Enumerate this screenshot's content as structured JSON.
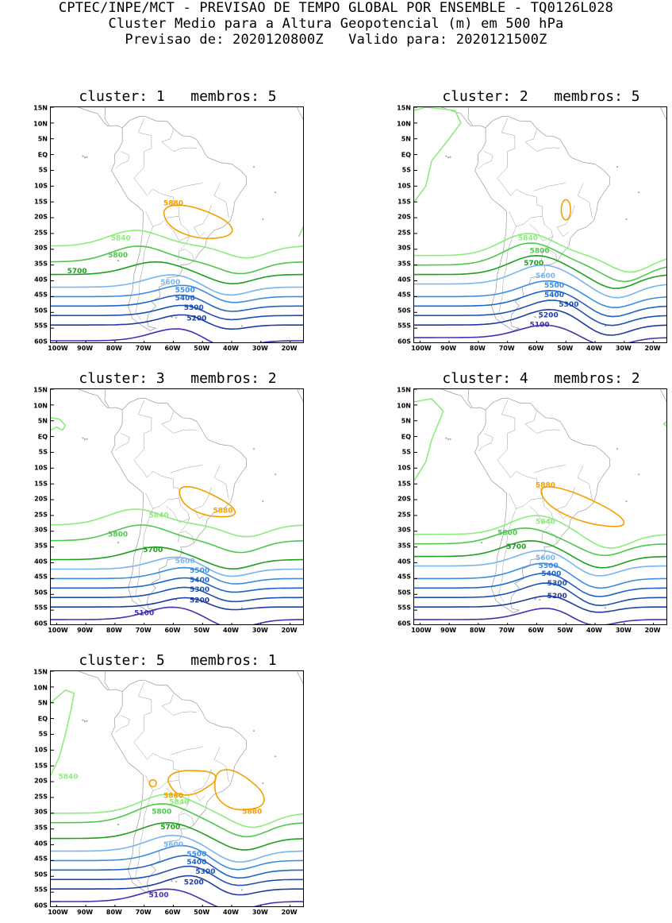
{
  "header": {
    "line1": "CPTEC/INPE/MCT - PREVISAO DE TEMPO GLOBAL POR ENSEMBLE - TQ0126L028",
    "line2": "Cluster Medio para a Altura Geopotencial (m) em 500 hPa",
    "line3": "Previsao de: 2020120800Z   Valido para: 2020121500Z"
  },
  "axes": {
    "lat_ticks": [
      "15N",
      "10N",
      "5N",
      "EQ",
      "5S",
      "10S",
      "15S",
      "20S",
      "25S",
      "30S",
      "35S",
      "40S",
      "45S",
      "50S",
      "55S",
      "60S"
    ],
    "lon_ticks": [
      "100W",
      "90W",
      "80W",
      "70W",
      "60W",
      "50W",
      "40W",
      "30W",
      "20W"
    ]
  },
  "colors": {
    "c5880": "#f5a000",
    "c5840": "#8cec7c",
    "c5800": "#4cc84c",
    "c5700": "#1ea01e",
    "c5600": "#78b4f0",
    "c5500": "#3c8ce0",
    "c5400": "#1e64c8",
    "c5300": "#1e50b4",
    "c5200": "#1e3ca0",
    "c5100": "#4b2db4",
    "coast": "#9a9a9a"
  },
  "panels": [
    {
      "title": "cluster: 1   membros: 5",
      "labels": [
        {
          "text": "5880",
          "lon": -60,
          "lat": -15.5,
          "color": "c5880"
        },
        {
          "text": "5840",
          "lon": -78,
          "lat": -26.5,
          "color": "c5840"
        },
        {
          "text": "5800",
          "lon": -79,
          "lat": -32,
          "color": "c5800"
        },
        {
          "text": "5700",
          "lon": -93,
          "lat": -37,
          "color": "c5700"
        },
        {
          "text": "5600",
          "lon": -61,
          "lat": -40.5,
          "color": "c5600"
        },
        {
          "text": "5500",
          "lon": -56,
          "lat": -43,
          "color": "c5500"
        },
        {
          "text": "5400",
          "lon": -56,
          "lat": -45.5,
          "color": "c5400"
        },
        {
          "text": "5300",
          "lon": -53,
          "lat": -48.5,
          "color": "c5300"
        },
        {
          "text": "5200",
          "lon": -52,
          "lat": -52,
          "color": "c5200"
        }
      ]
    },
    {
      "title": "cluster: 2   membros: 5",
      "labels": [
        {
          "text": "5840",
          "lon": -63,
          "lat": -26.5,
          "color": "c5840"
        },
        {
          "text": "5800",
          "lon": -59,
          "lat": -30.5,
          "color": "c5800"
        },
        {
          "text": "5700",
          "lon": -61,
          "lat": -34.5,
          "color": "c5700"
        },
        {
          "text": "5600",
          "lon": -57,
          "lat": -38.5,
          "color": "c5600"
        },
        {
          "text": "5500",
          "lon": -54,
          "lat": -41.5,
          "color": "c5500"
        },
        {
          "text": "5400",
          "lon": -54,
          "lat": -44.5,
          "color": "c5400"
        },
        {
          "text": "5300",
          "lon": -49,
          "lat": -47.5,
          "color": "c5300"
        },
        {
          "text": "5200",
          "lon": -56,
          "lat": -51,
          "color": "c5200"
        },
        {
          "text": "5100",
          "lon": -59,
          "lat": -54,
          "color": "c5100"
        }
      ]
    },
    {
      "title": "cluster: 3   membros: 2",
      "labels": [
        {
          "text": "5840",
          "lon": -65,
          "lat": -25,
          "color": "c5840"
        },
        {
          "text": "5880",
          "lon": -43,
          "lat": -23.5,
          "color": "c5880"
        },
        {
          "text": "5800",
          "lon": -79,
          "lat": -31,
          "color": "c5800"
        },
        {
          "text": "5700",
          "lon": -67,
          "lat": -36,
          "color": "c5700"
        },
        {
          "text": "5600",
          "lon": -56,
          "lat": -39.5,
          "color": "c5600"
        },
        {
          "text": "5500",
          "lon": -51,
          "lat": -42.5,
          "color": "c5500"
        },
        {
          "text": "5400",
          "lon": -51,
          "lat": -45.5,
          "color": "c5400"
        },
        {
          "text": "5300",
          "lon": -51,
          "lat": -48.5,
          "color": "c5300"
        },
        {
          "text": "5200",
          "lon": -51,
          "lat": -52,
          "color": "c5200"
        },
        {
          "text": "5100",
          "lon": -70,
          "lat": -56,
          "color": "c5100"
        }
      ]
    },
    {
      "title": "cluster: 4   membros: 2",
      "labels": [
        {
          "text": "5880",
          "lon": -57,
          "lat": -15.5,
          "color": "c5880"
        },
        {
          "text": "5840",
          "lon": -57,
          "lat": -27,
          "color": "c5840"
        },
        {
          "text": "5800",
          "lon": -70,
          "lat": -30.5,
          "color": "c5800"
        },
        {
          "text": "5700",
          "lon": -67,
          "lat": -35,
          "color": "c5700"
        },
        {
          "text": "5600",
          "lon": -57,
          "lat": -38.5,
          "color": "c5600"
        },
        {
          "text": "5500",
          "lon": -56,
          "lat": -41,
          "color": "c5500"
        },
        {
          "text": "5400",
          "lon": -55,
          "lat": -43.5,
          "color": "c5400"
        },
        {
          "text": "5300",
          "lon": -53,
          "lat": -46.5,
          "color": "c5300"
        },
        {
          "text": "5200",
          "lon": -53,
          "lat": -50.5,
          "color": "c5200"
        }
      ]
    },
    {
      "title": "cluster: 5   membros: 1",
      "labels": [
        {
          "text": "5840",
          "lon": -96,
          "lat": -18.5,
          "color": "c5840"
        },
        {
          "text": "5880",
          "lon": -60,
          "lat": -24.5,
          "color": "c5880"
        },
        {
          "text": "5880",
          "lon": -33,
          "lat": -29.5,
          "color": "c5880"
        },
        {
          "text": "5840",
          "lon": -58,
          "lat": -26.5,
          "color": "c5840"
        },
        {
          "text": "5800",
          "lon": -64,
          "lat": -29.5,
          "color": "c5800"
        },
        {
          "text": "5700",
          "lon": -61,
          "lat": -34.5,
          "color": "c5700"
        },
        {
          "text": "5600",
          "lon": -60,
          "lat": -40,
          "color": "c5600"
        },
        {
          "text": "5500",
          "lon": -52,
          "lat": -43,
          "color": "c5500"
        },
        {
          "text": "5400",
          "lon": -52,
          "lat": -45.5,
          "color": "c5400"
        },
        {
          "text": "5300",
          "lon": -49,
          "lat": -48.5,
          "color": "c5300"
        },
        {
          "text": "5200",
          "lon": -53,
          "lat": -52,
          "color": "c5200"
        },
        {
          "text": "5100",
          "lon": -65,
          "lat": -56,
          "color": "c5100"
        }
      ]
    }
  ]
}
